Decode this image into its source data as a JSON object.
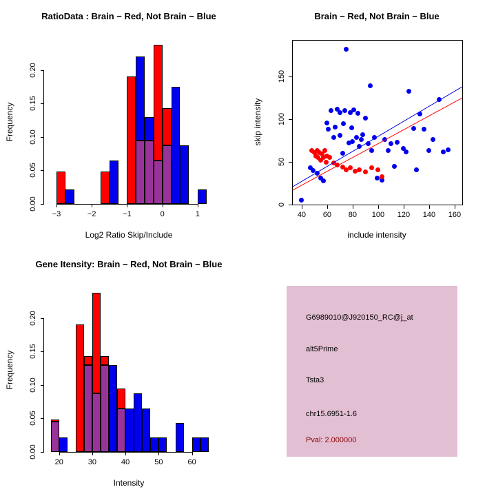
{
  "window": {
    "background": "#ffffff"
  },
  "chart_data": [
    {
      "el": "plot-ratio",
      "type": "bar",
      "subtype": "overlaid-histogram",
      "title": "RatioData : Brain − Red, Not Brain − Blue",
      "xlabel": "Log2 Ratio Skip/Include",
      "ylabel": "Frequency",
      "xlim": [
        -3.35,
        1.45
      ],
      "ylim": [
        0,
        0.245
      ],
      "grid": false,
      "legend": "none",
      "colors": {
        "red": "#ff0000",
        "blue": "#0000ee",
        "overlap": "#993399"
      },
      "xticks": [
        {
          "v": -3,
          "label": "−3"
        },
        {
          "v": -2,
          "label": "−2"
        },
        {
          "v": -1,
          "label": "−1"
        },
        {
          "v": 0,
          "label": "0"
        },
        {
          "v": 1,
          "label": "1"
        }
      ],
      "yticks": [
        {
          "v": 0,
          "label": "0.00"
        },
        {
          "v": 0.05,
          "label": "0.05"
        },
        {
          "v": 0.1,
          "label": "0.10"
        },
        {
          "v": 0.15,
          "label": "0.15"
        },
        {
          "v": 0.2,
          "label": "0.20"
        }
      ],
      "bins": [
        {
          "x0": -3.0,
          "x1": -2.75,
          "r": 0.048,
          "b": 0
        },
        {
          "x0": -2.75,
          "x1": -2.5,
          "r": 0,
          "b": 0.022
        },
        {
          "x0": -1.75,
          "x1": -1.5,
          "r": 0.048,
          "b": 0
        },
        {
          "x0": -1.5,
          "x1": -1.25,
          "r": 0,
          "b": 0.065
        },
        {
          "x0": -1.0,
          "x1": -0.75,
          "r": 0.19,
          "b": 0
        },
        {
          "x0": -0.75,
          "x1": -0.5,
          "r": 0.095,
          "b": 0.22
        },
        {
          "x0": -0.5,
          "x1": -0.25,
          "r": 0.095,
          "b": 0.13
        },
        {
          "x0": -0.25,
          "x1": 0.0,
          "r": 0.238,
          "b": 0.065
        },
        {
          "x0": 0.0,
          "x1": 0.25,
          "r": 0.143,
          "b": 0.087
        },
        {
          "x0": 0.25,
          "x1": 0.5,
          "r": 0,
          "b": 0.175
        },
        {
          "x0": 0.5,
          "x1": 0.75,
          "r": 0,
          "b": 0.087
        },
        {
          "x0": 1.0,
          "x1": 1.25,
          "r": 0,
          "b": 0.022
        }
      ]
    },
    {
      "el": "plot-scatter",
      "type": "scatter",
      "box": true,
      "title": "Brain − Red, Not Brain − Blue",
      "xlabel": "include intensity",
      "ylabel": "skip intensity",
      "xlim": [
        33,
        166
      ],
      "ylim": [
        0,
        192
      ],
      "grid": false,
      "legend": "none",
      "xticks": [
        {
          "v": 40,
          "label": "40"
        },
        {
          "v": 60,
          "label": "60"
        },
        {
          "v": 80,
          "label": "80"
        },
        {
          "v": 100,
          "label": "100"
        },
        {
          "v": 120,
          "label": "120"
        },
        {
          "v": 140,
          "label": "140"
        },
        {
          "v": 160,
          "label": "160"
        }
      ],
      "yticks": [
        {
          "v": 0,
          "label": "0"
        },
        {
          "v": 50,
          "label": "50"
        },
        {
          "v": 100,
          "label": "100"
        },
        {
          "v": 150,
          "label": "150"
        }
      ],
      "series": [
        {
          "name": "Not Brain",
          "color": "#0000ee",
          "points": [
            [
              40,
              5
            ],
            [
              47,
              43
            ],
            [
              49,
              40
            ],
            [
              52,
              37
            ],
            [
              55,
              31
            ],
            [
              57,
              28
            ],
            [
              60,
              96
            ],
            [
              61,
              88
            ],
            [
              63,
              110
            ],
            [
              65,
              79
            ],
            [
              66,
              91
            ],
            [
              68,
              112
            ],
            [
              70,
              108
            ],
            [
              70,
              81
            ],
            [
              72,
              60
            ],
            [
              73,
              95
            ],
            [
              74,
              110
            ],
            [
              75,
              182
            ],
            [
              77,
              72
            ],
            [
              78,
              108
            ],
            [
              79,
              90
            ],
            [
              80,
              74
            ],
            [
              81,
              111
            ],
            [
              83,
              79
            ],
            [
              84,
              107
            ],
            [
              85,
              68
            ],
            [
              87,
              76
            ],
            [
              88,
              82
            ],
            [
              90,
              101
            ],
            [
              92,
              71
            ],
            [
              94,
              139
            ],
            [
              95,
              63
            ],
            [
              97,
              79
            ],
            [
              99,
              31
            ],
            [
              103,
              29
            ],
            [
              105,
              76
            ],
            [
              108,
              63
            ],
            [
              110,
              71
            ],
            [
              113,
              45
            ],
            [
              115,
              73
            ],
            [
              120,
              66
            ],
            [
              122,
              62
            ],
            [
              124,
              133
            ],
            [
              128,
              89
            ],
            [
              130,
              41
            ],
            [
              133,
              106
            ],
            [
              136,
              88
            ],
            [
              140,
              63
            ],
            [
              143,
              76
            ],
            [
              148,
              123
            ],
            [
              151,
              62
            ],
            [
              155,
              64
            ]
          ]
        },
        {
          "name": "Brain",
          "color": "#ff0000",
          "points": [
            [
              48,
              63
            ],
            [
              50,
              61
            ],
            [
              51,
              57
            ],
            [
              52,
              63
            ],
            [
              53,
              55
            ],
            [
              54,
              61
            ],
            [
              55,
              52
            ],
            [
              56,
              59
            ],
            [
              57,
              55
            ],
            [
              58,
              63
            ],
            [
              59,
              50
            ],
            [
              60,
              57
            ],
            [
              62,
              55
            ],
            [
              65,
              49
            ],
            [
              68,
              46
            ],
            [
              72,
              44
            ],
            [
              75,
              41
            ],
            [
              78,
              43
            ],
            [
              82,
              39
            ],
            [
              85,
              41
            ],
            [
              90,
              38
            ],
            [
              95,
              43
            ],
            [
              100,
              41
            ],
            [
              103,
              33
            ]
          ]
        }
      ],
      "lines": [
        {
          "x1": 33,
          "y1": 21,
          "x2": 166,
          "y2": 138,
          "color": "#0000ee"
        },
        {
          "x1": 33,
          "y1": 17,
          "x2": 166,
          "y2": 125,
          "color": "#ff0000"
        }
      ]
    },
    {
      "el": "plot-gene",
      "type": "bar",
      "subtype": "overlaid-histogram",
      "title": "Gene Itensity: Brain − Red, Not Brain − Blue",
      "xlabel": "Intensity",
      "ylabel": "Frequency",
      "xlim": [
        15.5,
        66.5
      ],
      "ylim": [
        0,
        0.245
      ],
      "grid": false,
      "legend": "none",
      "colors": {
        "red": "#ff0000",
        "blue": "#0000ee",
        "overlap": "#993399"
      },
      "xticks": [
        {
          "v": 20,
          "label": "20"
        },
        {
          "v": 30,
          "label": "30"
        },
        {
          "v": 40,
          "label": "40"
        },
        {
          "v": 50,
          "label": "50"
        },
        {
          "v": 60,
          "label": "60"
        }
      ],
      "yticks": [
        {
          "v": 0,
          "label": "0.00"
        },
        {
          "v": 0.05,
          "label": "0.05"
        },
        {
          "v": 0.1,
          "label": "0.10"
        },
        {
          "v": 0.15,
          "label": "0.15"
        },
        {
          "v": 0.2,
          "label": "0.20"
        }
      ],
      "bins": [
        {
          "x0": 17.5,
          "x1": 20,
          "r": 0.048,
          "b": 0.045
        },
        {
          "x0": 20,
          "x1": 22.5,
          "r": 0,
          "b": 0.022
        },
        {
          "x0": 25,
          "x1": 27.5,
          "r": 0.19,
          "b": 0
        },
        {
          "x0": 27.5,
          "x1": 30,
          "r": 0.143,
          "b": 0.13
        },
        {
          "x0": 30,
          "x1": 32.5,
          "r": 0.238,
          "b": 0.087
        },
        {
          "x0": 32.5,
          "x1": 35,
          "r": 0.143,
          "b": 0.13
        },
        {
          "x0": 35,
          "x1": 37.5,
          "r": 0,
          "b": 0.13
        },
        {
          "x0": 37.5,
          "x1": 40,
          "r": 0.095,
          "b": 0.065
        },
        {
          "x0": 40,
          "x1": 42.5,
          "r": 0,
          "b": 0.065
        },
        {
          "x0": 42.5,
          "x1": 45,
          "r": 0,
          "b": 0.087
        },
        {
          "x0": 45,
          "x1": 47.5,
          "r": 0,
          "b": 0.065
        },
        {
          "x0": 47.5,
          "x1": 50,
          "r": 0,
          "b": 0.022
        },
        {
          "x0": 50,
          "x1": 52.5,
          "r": 0,
          "b": 0.022
        },
        {
          "x0": 55,
          "x1": 57.5,
          "r": 0,
          "b": 0.043
        },
        {
          "x0": 60,
          "x1": 62.5,
          "r": 0,
          "b": 0.022
        },
        {
          "x0": 62.5,
          "x1": 65,
          "r": 0,
          "b": 0.022
        }
      ]
    }
  ],
  "info_panel": {
    "background": "#e3bfd4",
    "lines": [
      {
        "text": "G6989010@J920150_RC@j_at",
        "color": "#000000"
      },
      {
        "text": "alt5Prime",
        "color": "#000000"
      },
      {
        "text": "Tsta3",
        "color": "#000000"
      },
      {
        "text": "chr15.6951-1.6",
        "color": "#000000"
      },
      {
        "text": "Pval: 2.000000",
        "color": "#8b0000"
      }
    ]
  }
}
